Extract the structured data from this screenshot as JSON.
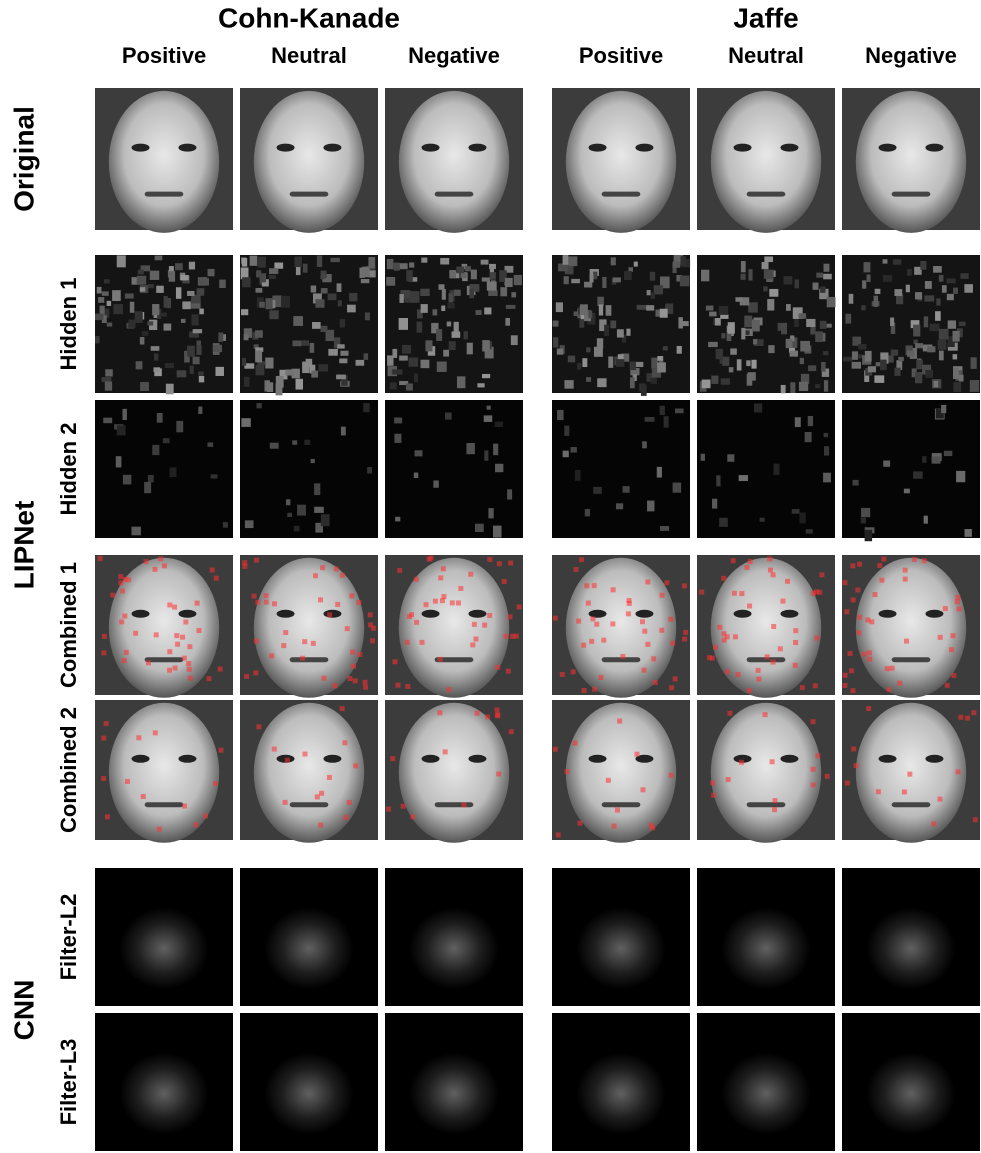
{
  "groups": [
    {
      "title": "Cohn-Kanade",
      "columns": [
        "Positive",
        "Neutral",
        "Negative"
      ]
    },
    {
      "title": "Jaffe",
      "columns": [
        "Positive",
        "Neutral",
        "Negative"
      ]
    }
  ],
  "original": {
    "label": "Original"
  },
  "lipnet": {
    "label": "LIPNet",
    "rows": [
      "Hidden 1",
      "Hidden 2",
      "Combined 1",
      "Combined 2"
    ]
  },
  "cnn": {
    "label": "CNN",
    "rows": [
      "Filter-L2",
      "Filter-L3"
    ]
  }
}
